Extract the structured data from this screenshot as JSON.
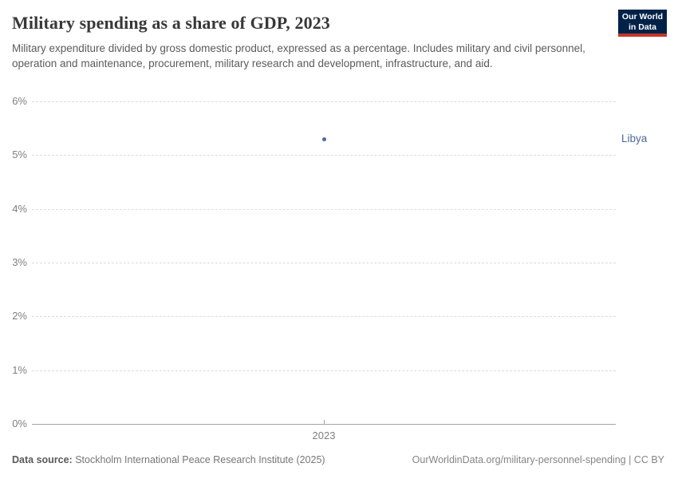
{
  "header": {
    "title": "Military spending as a share of GDP, 2023",
    "subtitle": "Military expenditure divided by gross domestic product, expressed as a percentage. Includes military and civil personnel, operation and maintenance, procurement, military research and development, infrastructure, and aid.",
    "logo": {
      "line1": "Our World",
      "line2": "in Data",
      "bg_color": "#002147",
      "accent_color": "#c0392b"
    }
  },
  "chart_data": {
    "type": "scatter",
    "title": "Military spending as a share of GDP, 2023",
    "x": [
      2023
    ],
    "xticks": [
      "2023"
    ],
    "yticks": [
      "0%",
      "1%",
      "2%",
      "3%",
      "4%",
      "5%",
      "6%"
    ],
    "ylim": [
      0,
      6
    ],
    "grid": "horizontal-dashed",
    "legend_position": "entity label right of plot",
    "series": [
      {
        "name": "Libya",
        "values": [
          5.3
        ],
        "color": "#4c6a9c"
      }
    ]
  },
  "footer": {
    "datasource_label": "Data source:",
    "datasource_value": " Stockholm International Peace Research Institute (2025)",
    "link": "OurWorldinData.org/military-personnel-spending | CC BY"
  }
}
